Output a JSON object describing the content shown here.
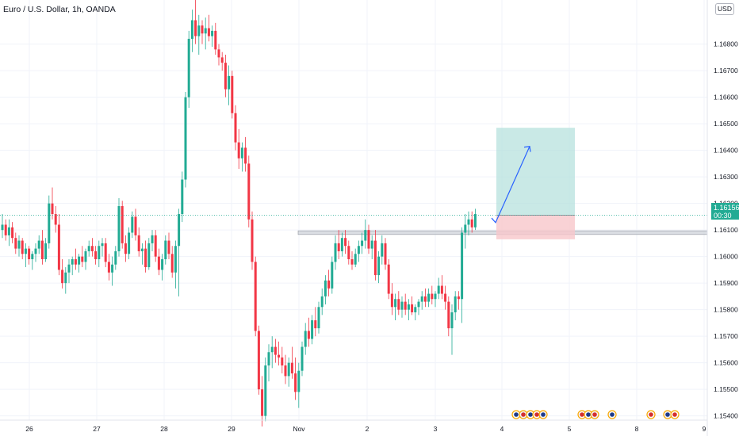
{
  "header": {
    "title": "Euro / U.S. Dollar, 1h, OANDA",
    "currency_button": "USD"
  },
  "price_tag": {
    "price": "1.16156",
    "countdown": "00:30"
  },
  "colors": {
    "up": "#22ab94",
    "down": "#f23645",
    "target": "#b2dfdb",
    "stop": "#f8c7cb",
    "zone": "#d1d4dc",
    "arrow": "#2962ff"
  },
  "chart_data": {
    "type": "candlestick",
    "symbol": "EURUSD",
    "interval": "1h",
    "ylim": [
      1.1535,
      1.17
    ],
    "y_ticks": [
      "1.15400",
      "1.15500",
      "1.15600",
      "1.15700",
      "1.15800",
      "1.15900",
      "1.16000",
      "1.16100",
      "1.16200",
      "1.16300",
      "1.16400",
      "1.16500",
      "1.16600",
      "1.16700",
      "1.16800"
    ],
    "x_ticks": [
      "26",
      "27",
      "28",
      "29",
      "Nov",
      "2",
      "3",
      "4",
      "5",
      "8",
      "9"
    ],
    "price_line": 1.16156,
    "ohlc": [
      [
        1.161,
        1.1616,
        1.1607,
        1.1612
      ],
      [
        1.1612,
        1.1614,
        1.1606,
        1.1608
      ],
      [
        1.1608,
        1.1614,
        1.1604,
        1.1611
      ],
      [
        1.1611,
        1.1613,
        1.1605,
        1.1607
      ],
      [
        1.1607,
        1.1609,
        1.1601,
        1.1603
      ],
      [
        1.1603,
        1.1608,
        1.16,
        1.1606
      ],
      [
        1.1606,
        1.1607,
        1.1599,
        1.1601
      ],
      [
        1.1601,
        1.1605,
        1.1596,
        1.1603
      ],
      [
        1.1603,
        1.1604,
        1.1597,
        1.1599
      ],
      [
        1.1599,
        1.1602,
        1.1595,
        1.1601
      ],
      [
        1.1601,
        1.1605,
        1.1598,
        1.1603
      ],
      [
        1.1603,
        1.1608,
        1.1601,
        1.1606
      ],
      [
        1.1606,
        1.161,
        1.1597,
        1.1599
      ],
      [
        1.1599,
        1.1607,
        1.1598,
        1.1605
      ],
      [
        1.1605,
        1.1623,
        1.1603,
        1.162
      ],
      [
        1.162,
        1.1626,
        1.1614,
        1.1616
      ],
      [
        1.1616,
        1.1619,
        1.1609,
        1.1612
      ],
      [
        1.1612,
        1.1616,
        1.1593,
        1.1595
      ],
      [
        1.1595,
        1.1599,
        1.1588,
        1.159
      ],
      [
        1.159,
        1.1596,
        1.1586,
        1.1594
      ],
      [
        1.1594,
        1.1599,
        1.159,
        1.1597
      ],
      [
        1.1597,
        1.16,
        1.1593,
        1.1599
      ],
      [
        1.1599,
        1.1603,
        1.1595,
        1.1597
      ],
      [
        1.1597,
        1.1601,
        1.1594,
        1.16
      ],
      [
        1.16,
        1.1604,
        1.1596,
        1.1598
      ],
      [
        1.1598,
        1.1603,
        1.1595,
        1.1602
      ],
      [
        1.1602,
        1.1606,
        1.16,
        1.1604
      ],
      [
        1.1604,
        1.1607,
        1.16,
        1.1602
      ],
      [
        1.1602,
        1.1604,
        1.1597,
        1.1599
      ],
      [
        1.1599,
        1.1606,
        1.1596,
        1.1604
      ],
      [
        1.1604,
        1.1607,
        1.16,
        1.1605
      ],
      [
        1.1605,
        1.1607,
        1.1596,
        1.1598
      ],
      [
        1.1598,
        1.1601,
        1.1591,
        1.1594
      ],
      [
        1.1594,
        1.16,
        1.1589,
        1.1597
      ],
      [
        1.1597,
        1.1604,
        1.1595,
        1.1602
      ],
      [
        1.1602,
        1.1622,
        1.16,
        1.1619
      ],
      [
        1.1619,
        1.1621,
        1.1603,
        1.1605
      ],
      [
        1.1605,
        1.1608,
        1.1598,
        1.1601
      ],
      [
        1.1601,
        1.1611,
        1.1599,
        1.1609
      ],
      [
        1.1609,
        1.1617,
        1.1607,
        1.1615
      ],
      [
        1.1615,
        1.1618,
        1.1606,
        1.1608
      ],
      [
        1.1608,
        1.1611,
        1.16,
        1.1602
      ],
      [
        1.1602,
        1.1605,
        1.1597,
        1.1603
      ],
      [
        1.1603,
        1.1606,
        1.1594,
        1.1596
      ],
      [
        1.1596,
        1.1607,
        1.1595,
        1.1605
      ],
      [
        1.1605,
        1.161,
        1.1602,
        1.1608
      ],
      [
        1.1608,
        1.161,
        1.1598,
        1.16
      ],
      [
        1.16,
        1.1603,
        1.1593,
        1.1595
      ],
      [
        1.1595,
        1.1601,
        1.1591,
        1.1599
      ],
      [
        1.1599,
        1.1608,
        1.1597,
        1.1606
      ],
      [
        1.1606,
        1.1609,
        1.1599,
        1.1601
      ],
      [
        1.1601,
        1.1604,
        1.1592,
        1.1594
      ],
      [
        1.1594,
        1.1606,
        1.1588,
        1.1604
      ],
      [
        1.1604,
        1.1618,
        1.1585,
        1.1616
      ],
      [
        1.1616,
        1.1632,
        1.1613,
        1.1629
      ],
      [
        1.1629,
        1.1662,
        1.1626,
        1.166
      ],
      [
        1.166,
        1.1685,
        1.1656,
        1.1682
      ],
      [
        1.1682,
        1.1693,
        1.1677,
        1.1689
      ],
      [
        1.1689,
        1.1697,
        1.168,
        1.1683
      ],
      [
        1.1683,
        1.1691,
        1.1676,
        1.1687
      ],
      [
        1.1687,
        1.1689,
        1.168,
        1.1684
      ],
      [
        1.1684,
        1.169,
        1.1678,
        1.1686
      ],
      [
        1.1686,
        1.1691,
        1.1681,
        1.1683
      ],
      [
        1.1683,
        1.1687,
        1.1679,
        1.1685
      ],
      [
        1.1685,
        1.1688,
        1.1676,
        1.1678
      ],
      [
        1.1678,
        1.168,
        1.1672,
        1.1675
      ],
      [
        1.1675,
        1.1677,
        1.167,
        1.1673
      ],
      [
        1.1673,
        1.1676,
        1.166,
        1.1663
      ],
      [
        1.1663,
        1.1672,
        1.1657,
        1.1668
      ],
      [
        1.1668,
        1.167,
        1.1652,
        1.1654
      ],
      [
        1.1654,
        1.1657,
        1.164,
        1.1643
      ],
      [
        1.1643,
        1.1648,
        1.1633,
        1.1637
      ],
      [
        1.1637,
        1.1643,
        1.1632,
        1.1641
      ],
      [
        1.1641,
        1.1645,
        1.1632,
        1.1635
      ],
      [
        1.1635,
        1.1638,
        1.1611,
        1.1614
      ],
      [
        1.1614,
        1.1617,
        1.1595,
        1.1598
      ],
      [
        1.1598,
        1.16,
        1.157,
        1.1572
      ],
      [
        1.1572,
        1.1574,
        1.1548,
        1.155
      ],
      [
        1.155,
        1.1555,
        1.1536,
        1.154
      ],
      [
        1.154,
        1.1562,
        1.1538,
        1.1559
      ],
      [
        1.1559,
        1.1567,
        1.1553,
        1.1564
      ],
      [
        1.1564,
        1.157,
        1.1558,
        1.1566
      ],
      [
        1.1566,
        1.1569,
        1.156,
        1.1563
      ],
      [
        1.1563,
        1.1568,
        1.1559,
        1.1562
      ],
      [
        1.1562,
        1.1566,
        1.1556,
        1.1559
      ],
      [
        1.1559,
        1.1563,
        1.1552,
        1.1555
      ],
      [
        1.1555,
        1.1562,
        1.1551,
        1.156
      ],
      [
        1.156,
        1.1566,
        1.1554,
        1.1556
      ],
      [
        1.1556,
        1.1562,
        1.1546,
        1.1549
      ],
      [
        1.1549,
        1.156,
        1.1543,
        1.1557
      ],
      [
        1.1557,
        1.1568,
        1.1555,
        1.1566
      ],
      [
        1.1566,
        1.1575,
        1.1563,
        1.1572
      ],
      [
        1.1572,
        1.1577,
        1.1566,
        1.1569
      ],
      [
        1.1569,
        1.1578,
        1.1567,
        1.1576
      ],
      [
        1.1576,
        1.1581,
        1.157,
        1.1573
      ],
      [
        1.1573,
        1.1583,
        1.1571,
        1.1581
      ],
      [
        1.1581,
        1.1588,
        1.1578,
        1.1585
      ],
      [
        1.1585,
        1.1593,
        1.1582,
        1.1591
      ],
      [
        1.1591,
        1.1595,
        1.1585,
        1.1588
      ],
      [
        1.1588,
        1.16,
        1.1586,
        1.1598
      ],
      [
        1.1598,
        1.1608,
        1.1595,
        1.1605
      ],
      [
        1.1605,
        1.161,
        1.1599,
        1.1602
      ],
      [
        1.1602,
        1.1609,
        1.16,
        1.1607
      ],
      [
        1.1607,
        1.161,
        1.1601,
        1.1604
      ],
      [
        1.1604,
        1.1606,
        1.1597,
        1.1599
      ],
      [
        1.1599,
        1.1602,
        1.1595,
        1.1597
      ],
      [
        1.1597,
        1.1603,
        1.1596,
        1.1601
      ],
      [
        1.1601,
        1.1606,
        1.1598,
        1.1604
      ],
      [
        1.1604,
        1.1609,
        1.1601,
        1.1606
      ],
      [
        1.1606,
        1.1614,
        1.1603,
        1.161
      ],
      [
        1.161,
        1.1612,
        1.1601,
        1.1603
      ],
      [
        1.1603,
        1.1608,
        1.1599,
        1.1606
      ],
      [
        1.1606,
        1.161,
        1.1591,
        1.1593
      ],
      [
        1.1593,
        1.1602,
        1.159,
        1.16
      ],
      [
        1.16,
        1.1608,
        1.1597,
        1.1605
      ],
      [
        1.1605,
        1.1607,
        1.1595,
        1.1597
      ],
      [
        1.1597,
        1.1599,
        1.1584,
        1.1586
      ],
      [
        1.1586,
        1.159,
        1.1578,
        1.1581
      ],
      [
        1.1581,
        1.1586,
        1.1576,
        1.1584
      ],
      [
        1.1584,
        1.1587,
        1.1578,
        1.158
      ],
      [
        1.158,
        1.1585,
        1.1577,
        1.1583
      ],
      [
        1.1583,
        1.1586,
        1.1578,
        1.158
      ],
      [
        1.158,
        1.1584,
        1.1576,
        1.1582
      ],
      [
        1.1582,
        1.1585,
        1.1578,
        1.1579
      ],
      [
        1.1579,
        1.1582,
        1.1576,
        1.1581
      ],
      [
        1.1581,
        1.1584,
        1.1578,
        1.1583
      ],
      [
        1.1583,
        1.1587,
        1.158,
        1.1585
      ],
      [
        1.1585,
        1.1588,
        1.1581,
        1.1583
      ],
      [
        1.1583,
        1.1588,
        1.1581,
        1.1586
      ],
      [
        1.1586,
        1.1589,
        1.1582,
        1.1584
      ],
      [
        1.1584,
        1.1587,
        1.1581,
        1.1586
      ],
      [
        1.1586,
        1.1592,
        1.1584,
        1.1589
      ],
      [
        1.1589,
        1.1593,
        1.1584,
        1.1586
      ],
      [
        1.1586,
        1.1589,
        1.158,
        1.1583
      ],
      [
        1.1583,
        1.1585,
        1.157,
        1.1573
      ],
      [
        1.1573,
        1.1582,
        1.1563,
        1.1579
      ],
      [
        1.1579,
        1.1587,
        1.1576,
        1.1585
      ],
      [
        1.1585,
        1.1587,
        1.158,
        1.1584
      ],
      [
        1.1584,
        1.1611,
        1.1575,
        1.1609
      ],
      [
        1.1609,
        1.1616,
        1.1603,
        1.1612
      ],
      [
        1.1612,
        1.1617,
        1.1608,
        1.1614
      ],
      [
        1.1614,
        1.1617,
        1.1609,
        1.1611
      ],
      [
        1.1611,
        1.1618,
        1.161,
        1.1616
      ]
    ],
    "long_position": {
      "entry": 1.16156,
      "target": 1.16485,
      "stop": 1.16065
    },
    "resistance_zone": [
      1.16083,
      1.16097
    ],
    "projection_arrow": {
      "from": 1.16128,
      "to": 1.16415
    },
    "event_markers": 12
  }
}
